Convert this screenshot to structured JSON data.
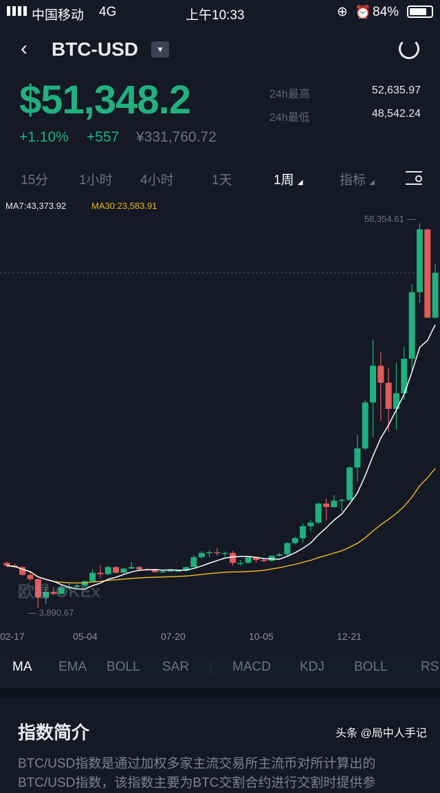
{
  "status_bar": {
    "carrier": "中国移动",
    "network": "4G",
    "time": "上午10:33",
    "battery": "84%"
  },
  "header": {
    "title": "BTC-USD"
  },
  "ticker": {
    "price": "$51,348.2",
    "change_pct": "+1.10%",
    "change_abs": "+557",
    "cny_price": "¥331,760.72",
    "high_label": "24h最高",
    "high_value": "52,635.97",
    "low_label": "24h最低",
    "low_value": "48,542.24"
  },
  "timeframes": [
    "15分",
    "1小时",
    "4小时",
    "1天",
    "1周",
    "指标"
  ],
  "chart_data": {
    "type": "candlestick",
    "ma7_label": "MA7:43,373.92",
    "ma30_label": "MA30:23,583.91",
    "max_label": "58,354.61",
    "min_label": "3,890.67",
    "min": 3890.67,
    "max": 58354.61,
    "current": 51348.2,
    "x_ticks": [
      "02-17",
      "05-04",
      "07-20",
      "10-05",
      "12-21"
    ],
    "watermark": "欧易 OKEx",
    "colors": {
      "up": "#1fb07e",
      "down": "#e15b5b",
      "ma7": "#ffffff",
      "ma30": "#e8b424"
    },
    "ohlc": [
      [
        10300,
        10500,
        9700,
        9900
      ],
      [
        9900,
        10200,
        9500,
        9700
      ],
      [
        9700,
        9800,
        8500,
        8600
      ],
      [
        8600,
        9200,
        7700,
        8000
      ],
      [
        8000,
        8100,
        3890.67,
        5400
      ],
      [
        5400,
        6900,
        4500,
        6200
      ],
      [
        6200,
        6900,
        5700,
        5900
      ],
      [
        5900,
        7300,
        5900,
        6800
      ],
      [
        6800,
        7400,
        6500,
        6900
      ],
      [
        6900,
        7300,
        6500,
        7100
      ],
      [
        7100,
        7800,
        6900,
        7700
      ],
      [
        7700,
        9400,
        7600,
        8900
      ],
      [
        8900,
        9900,
        8100,
        8700
      ],
      [
        8700,
        9900,
        8600,
        9700
      ],
      [
        9700,
        9800,
        8800,
        8900
      ],
      [
        8900,
        9600,
        8800,
        9500
      ],
      [
        9500,
        10400,
        9400,
        9700
      ],
      [
        9700,
        9900,
        9100,
        9400
      ],
      [
        9400,
        9600,
        9200,
        9300
      ],
      [
        9300,
        9400,
        8900,
        9000
      ],
      [
        9000,
        9300,
        8900,
        9100
      ],
      [
        9100,
        9400,
        9100,
        9200
      ],
      [
        9200,
        9300,
        9100,
        9200
      ],
      [
        9200,
        9800,
        9100,
        9700
      ],
      [
        9700,
        11400,
        9700,
        11100
      ],
      [
        11100,
        12000,
        10900,
        11700
      ],
      [
        11700,
        12100,
        11100,
        11800
      ],
      [
        11800,
        12400,
        11300,
        11650
      ],
      [
        11650,
        11900,
        11200,
        11700
      ],
      [
        11700,
        12000,
        9900,
        10300
      ],
      [
        10300,
        10700,
        9900,
        10300
      ],
      [
        10300,
        11100,
        10200,
        11100
      ],
      [
        11100,
        11200,
        10300,
        10700
      ],
      [
        10700,
        10900,
        10400,
        10600
      ],
      [
        10600,
        11400,
        10500,
        11300
      ],
      [
        11300,
        11700,
        11200,
        11500
      ],
      [
        11500,
        13200,
        11300,
        13100
      ],
      [
        13100,
        14000,
        12900,
        13800
      ],
      [
        13800,
        15900,
        13200,
        15500
      ],
      [
        15500,
        16400,
        14800,
        16000
      ],
      [
        16000,
        18800,
        15800,
        18700
      ],
      [
        18700,
        19400,
        16300,
        18200
      ],
      [
        18200,
        19900,
        18100,
        19100
      ],
      [
        19100,
        19400,
        17600,
        19200
      ],
      [
        19200,
        24000,
        19000,
        23800
      ],
      [
        23800,
        28400,
        21800,
        26500
      ],
      [
        26500,
        33300,
        26300,
        33000
      ],
      [
        33000,
        41900,
        28100,
        38200
      ],
      [
        38200,
        40100,
        30400,
        35800
      ],
      [
        35800,
        37900,
        28900,
        32100
      ],
      [
        32100,
        38600,
        29200,
        34300
      ],
      [
        34300,
        40900,
        33400,
        39200
      ],
      [
        39200,
        49700,
        37300,
        48600
      ],
      [
        48600,
        58354.61,
        47100,
        57500
      ],
      [
        57500,
        57600,
        45000,
        45000
      ],
      [
        45000,
        52600,
        44900,
        51348.2
      ]
    ]
  },
  "indicators": [
    "MA",
    "EMA",
    "BOLL",
    "SAR",
    "MACD",
    "KDJ",
    "BOLL",
    "RSI"
  ],
  "intro": {
    "title": "指数简介",
    "text": "BTC/USD指数是通过加权多家主流交易所主流币对所计算出的BTC/USD指数，该指数主要为BTC交割合约进行交割时提供参"
  },
  "overlay": "头条 @局中人手记"
}
